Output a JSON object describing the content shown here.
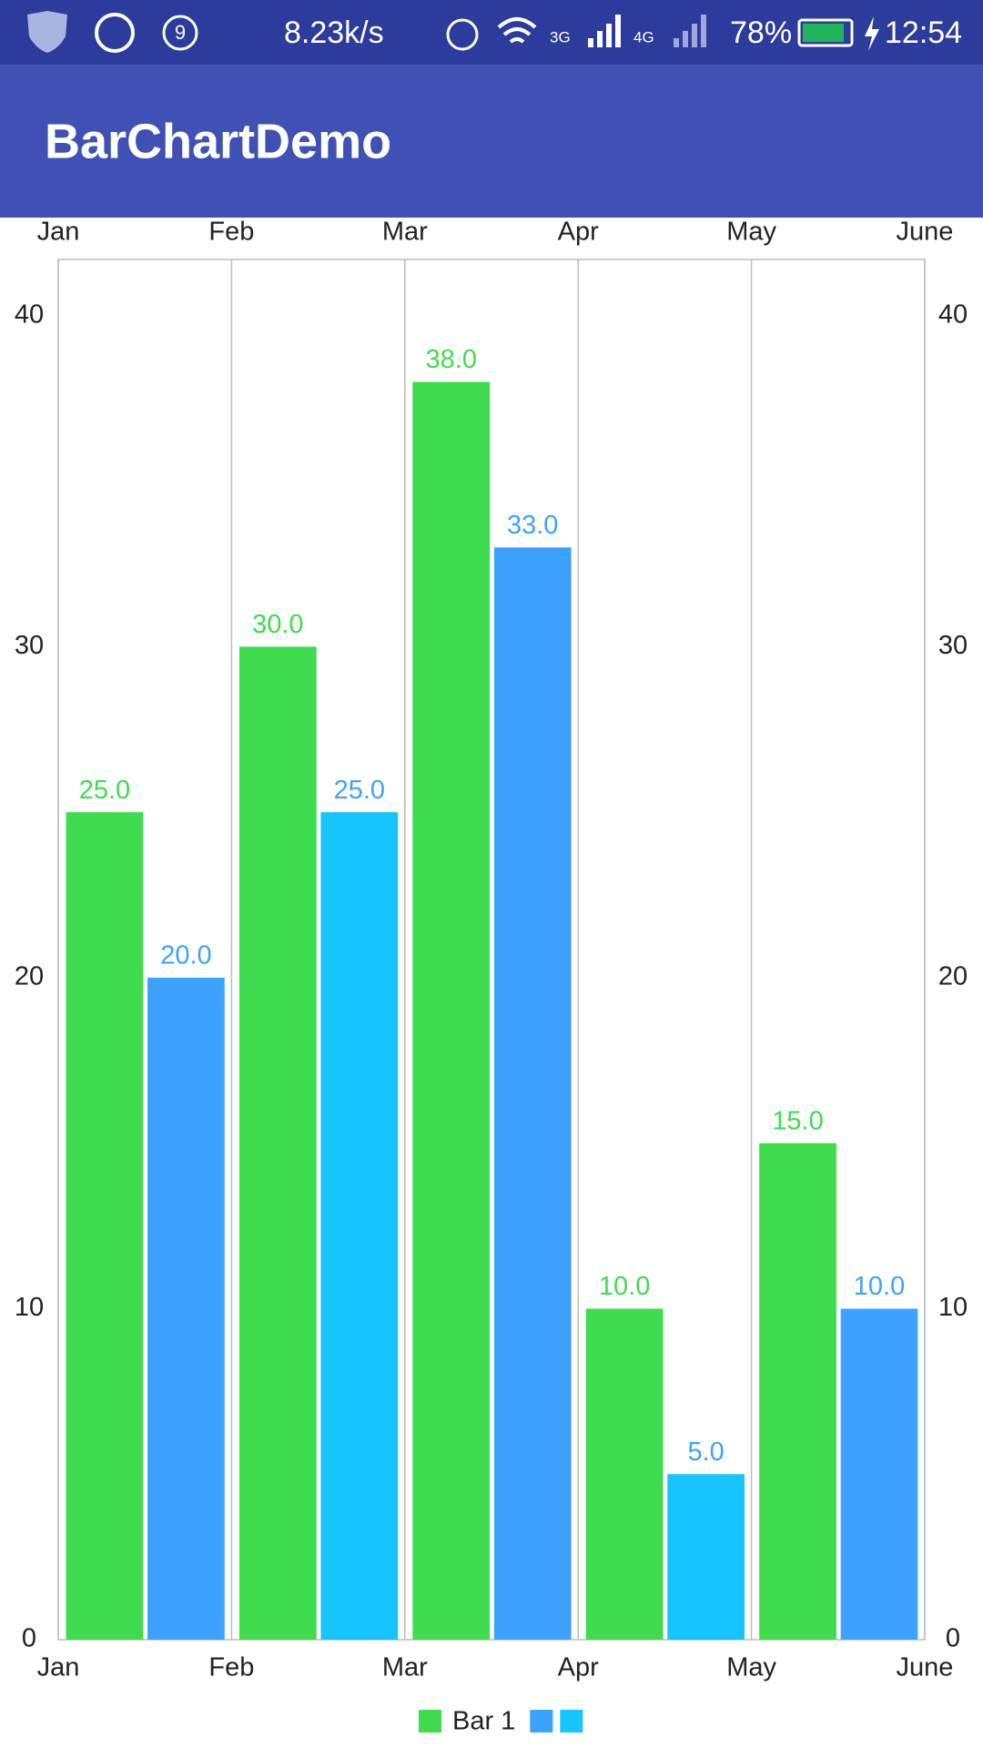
{
  "status_bar": {
    "notification_count": "9",
    "speed": "8.23k/s",
    "network_1": "3G",
    "network_2": "4G",
    "battery": "78%",
    "time": "12:54"
  },
  "app_bar": {
    "title": "BarChartDemo"
  },
  "chart_data": {
    "type": "grouped_bar",
    "x": [
      0,
      1,
      2,
      3,
      4
    ],
    "xlim": [
      0,
      5
    ],
    "xticks": [
      {
        "value": 0,
        "label": "Jan"
      },
      {
        "value": 1,
        "label": "Feb"
      },
      {
        "value": 2,
        "label": "Mar"
      },
      {
        "value": 3,
        "label": "Apr"
      },
      {
        "value": 4,
        "label": "May"
      },
      {
        "value": 5,
        "label": "June"
      }
    ],
    "series": [
      {
        "name": "Bar 1",
        "color": "#3fdc4f",
        "values": [
          25,
          30,
          38,
          10,
          15
        ],
        "value_labels": [
          "25.0",
          "30.0",
          "38.0",
          "10.0",
          "15.0"
        ]
      },
      {
        "colors": [
          "#3da2ff",
          "#16c4ff",
          "#3da2ff",
          "#16c4ff",
          "#3da2ff"
        ],
        "values": [
          20,
          25,
          33,
          5,
          10
        ],
        "value_labels": [
          "20.0",
          "25.0",
          "33.0",
          "5.0",
          "10.0"
        ]
      }
    ],
    "ylim": [
      0,
      41.7
    ],
    "yticks": [
      0,
      10,
      20,
      30,
      40
    ],
    "y2lim": [
      0,
      41.7
    ],
    "y2ticks": [
      0,
      10,
      20,
      30,
      40
    ],
    "grid": true,
    "legend": "bottom"
  }
}
